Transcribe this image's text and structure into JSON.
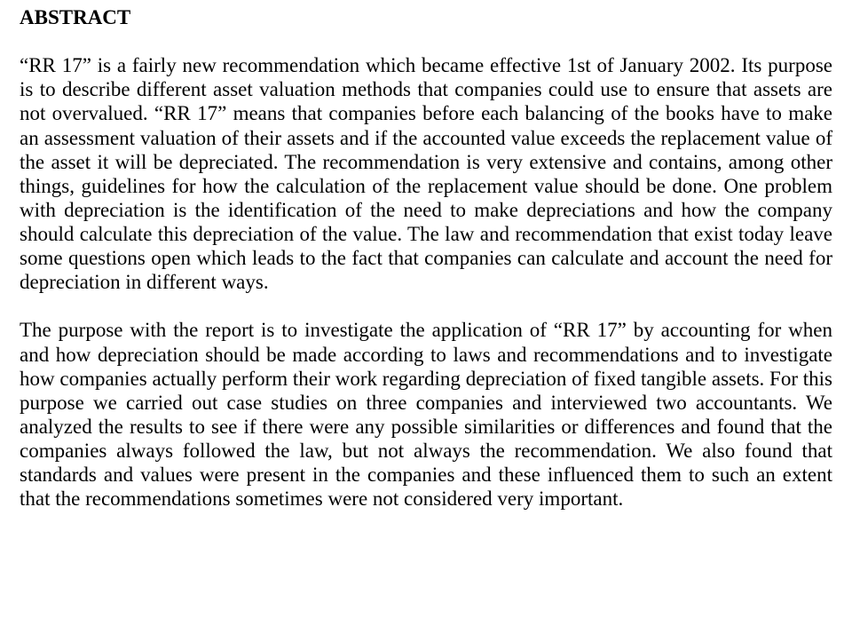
{
  "heading": "ABSTRACT",
  "para1": "“RR 17” is a fairly new recommendation which became effective 1st of January 2002. Its purpose is to describe different asset valuation methods that companies could use to ensure that assets are not overvalued. “RR 17” means that companies before each balancing of the books have to make an assessment valuation of their assets and if the accounted value exceeds the replacement value of the asset it will be depreciated. The recommendation is very extensive and contains, among other things, guidelines for how the calculation of the replacement value should be done. One problem with depreciation is the identification of the need to make depreciations and how the company should calculate this depreciation of the value. The law and recommendation that exist today leave some questions open which leads to the fact that companies can calculate and account the need for depreciation in different ways.",
  "para2": "The purpose with the report is to investigate the application of “RR 17” by accounting for when and how depreciation should be made according to laws and recommendations and to investigate how companies actually perform their work regarding depreciation of fixed tangible assets. For this purpose we carried out case studies on three companies and interviewed two accountants. We analyzed the results to see if there were any possible similarities or differences and found that the companies always followed the law, but not always the recommendation. We also found that standards and values were present in the companies and these influenced them to such an extent that the recommendations sometimes were not considered very important."
}
